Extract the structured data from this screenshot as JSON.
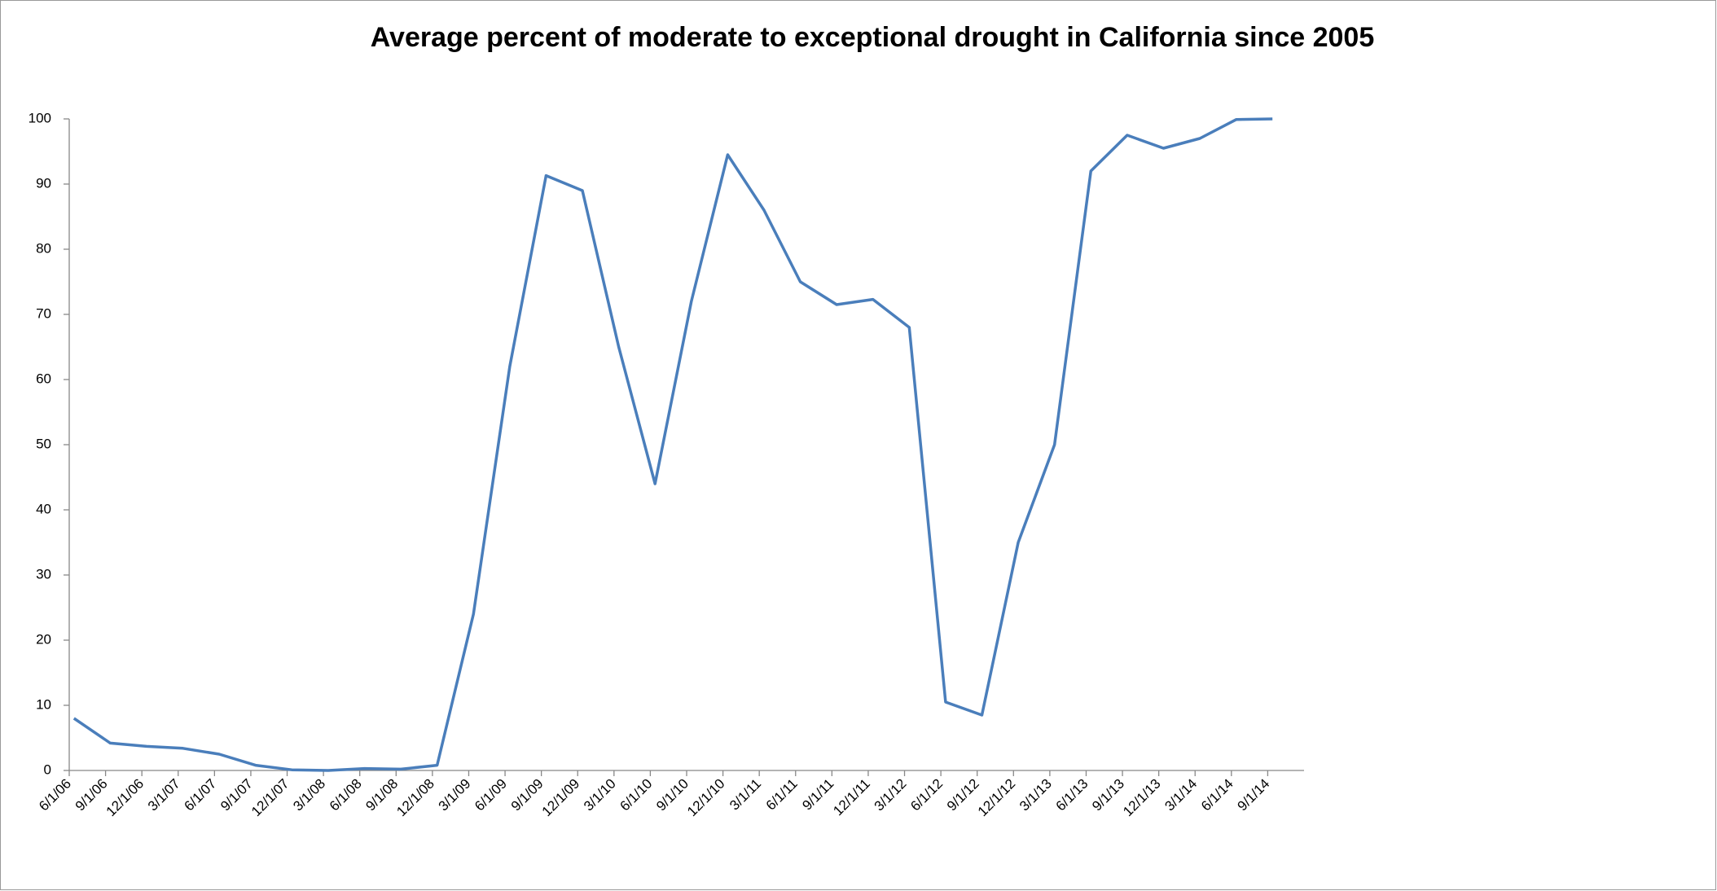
{
  "chart_data": {
    "type": "line",
    "title": "Average percent of moderate to exceptional drought in California since 2005",
    "categories": [
      "6/1/06",
      "9/1/06",
      "12/1/06",
      "3/1/07",
      "6/1/07",
      "9/1/07",
      "12/1/07",
      "3/1/08",
      "6/1/08",
      "9/1/08",
      "12/1/08",
      "3/1/09",
      "6/1/09",
      "9/1/09",
      "12/1/09",
      "3/1/10",
      "6/1/10",
      "9/1/10",
      "12/1/10",
      "3/1/11",
      "6/1/11",
      "9/1/11",
      "12/1/11",
      "3/1/12",
      "6/1/12",
      "9/1/12",
      "12/1/12",
      "3/1/13",
      "6/1/13",
      "9/1/13",
      "12/1/13",
      "3/1/14",
      "6/1/14",
      "9/1/14"
    ],
    "series": [
      {
        "color": "#4a7ebb",
        "values": [
          8,
          4.2,
          3.7,
          3.4,
          2.5,
          0.8,
          0.1,
          0,
          0.3,
          0.2,
          0.8,
          24,
          62,
          91.3,
          89,
          65,
          44,
          72,
          94.5,
          86,
          75,
          71.5,
          72.3,
          68,
          10.5,
          8.5,
          35,
          50,
          92,
          97.5,
          95.5,
          97,
          99.9,
          100
        ]
      }
    ],
    "ylim": [
      0,
      100
    ],
    "yticks": [
      0,
      10,
      20,
      30,
      40,
      50,
      60,
      70,
      80,
      90,
      100
    ],
    "grid": false
  }
}
